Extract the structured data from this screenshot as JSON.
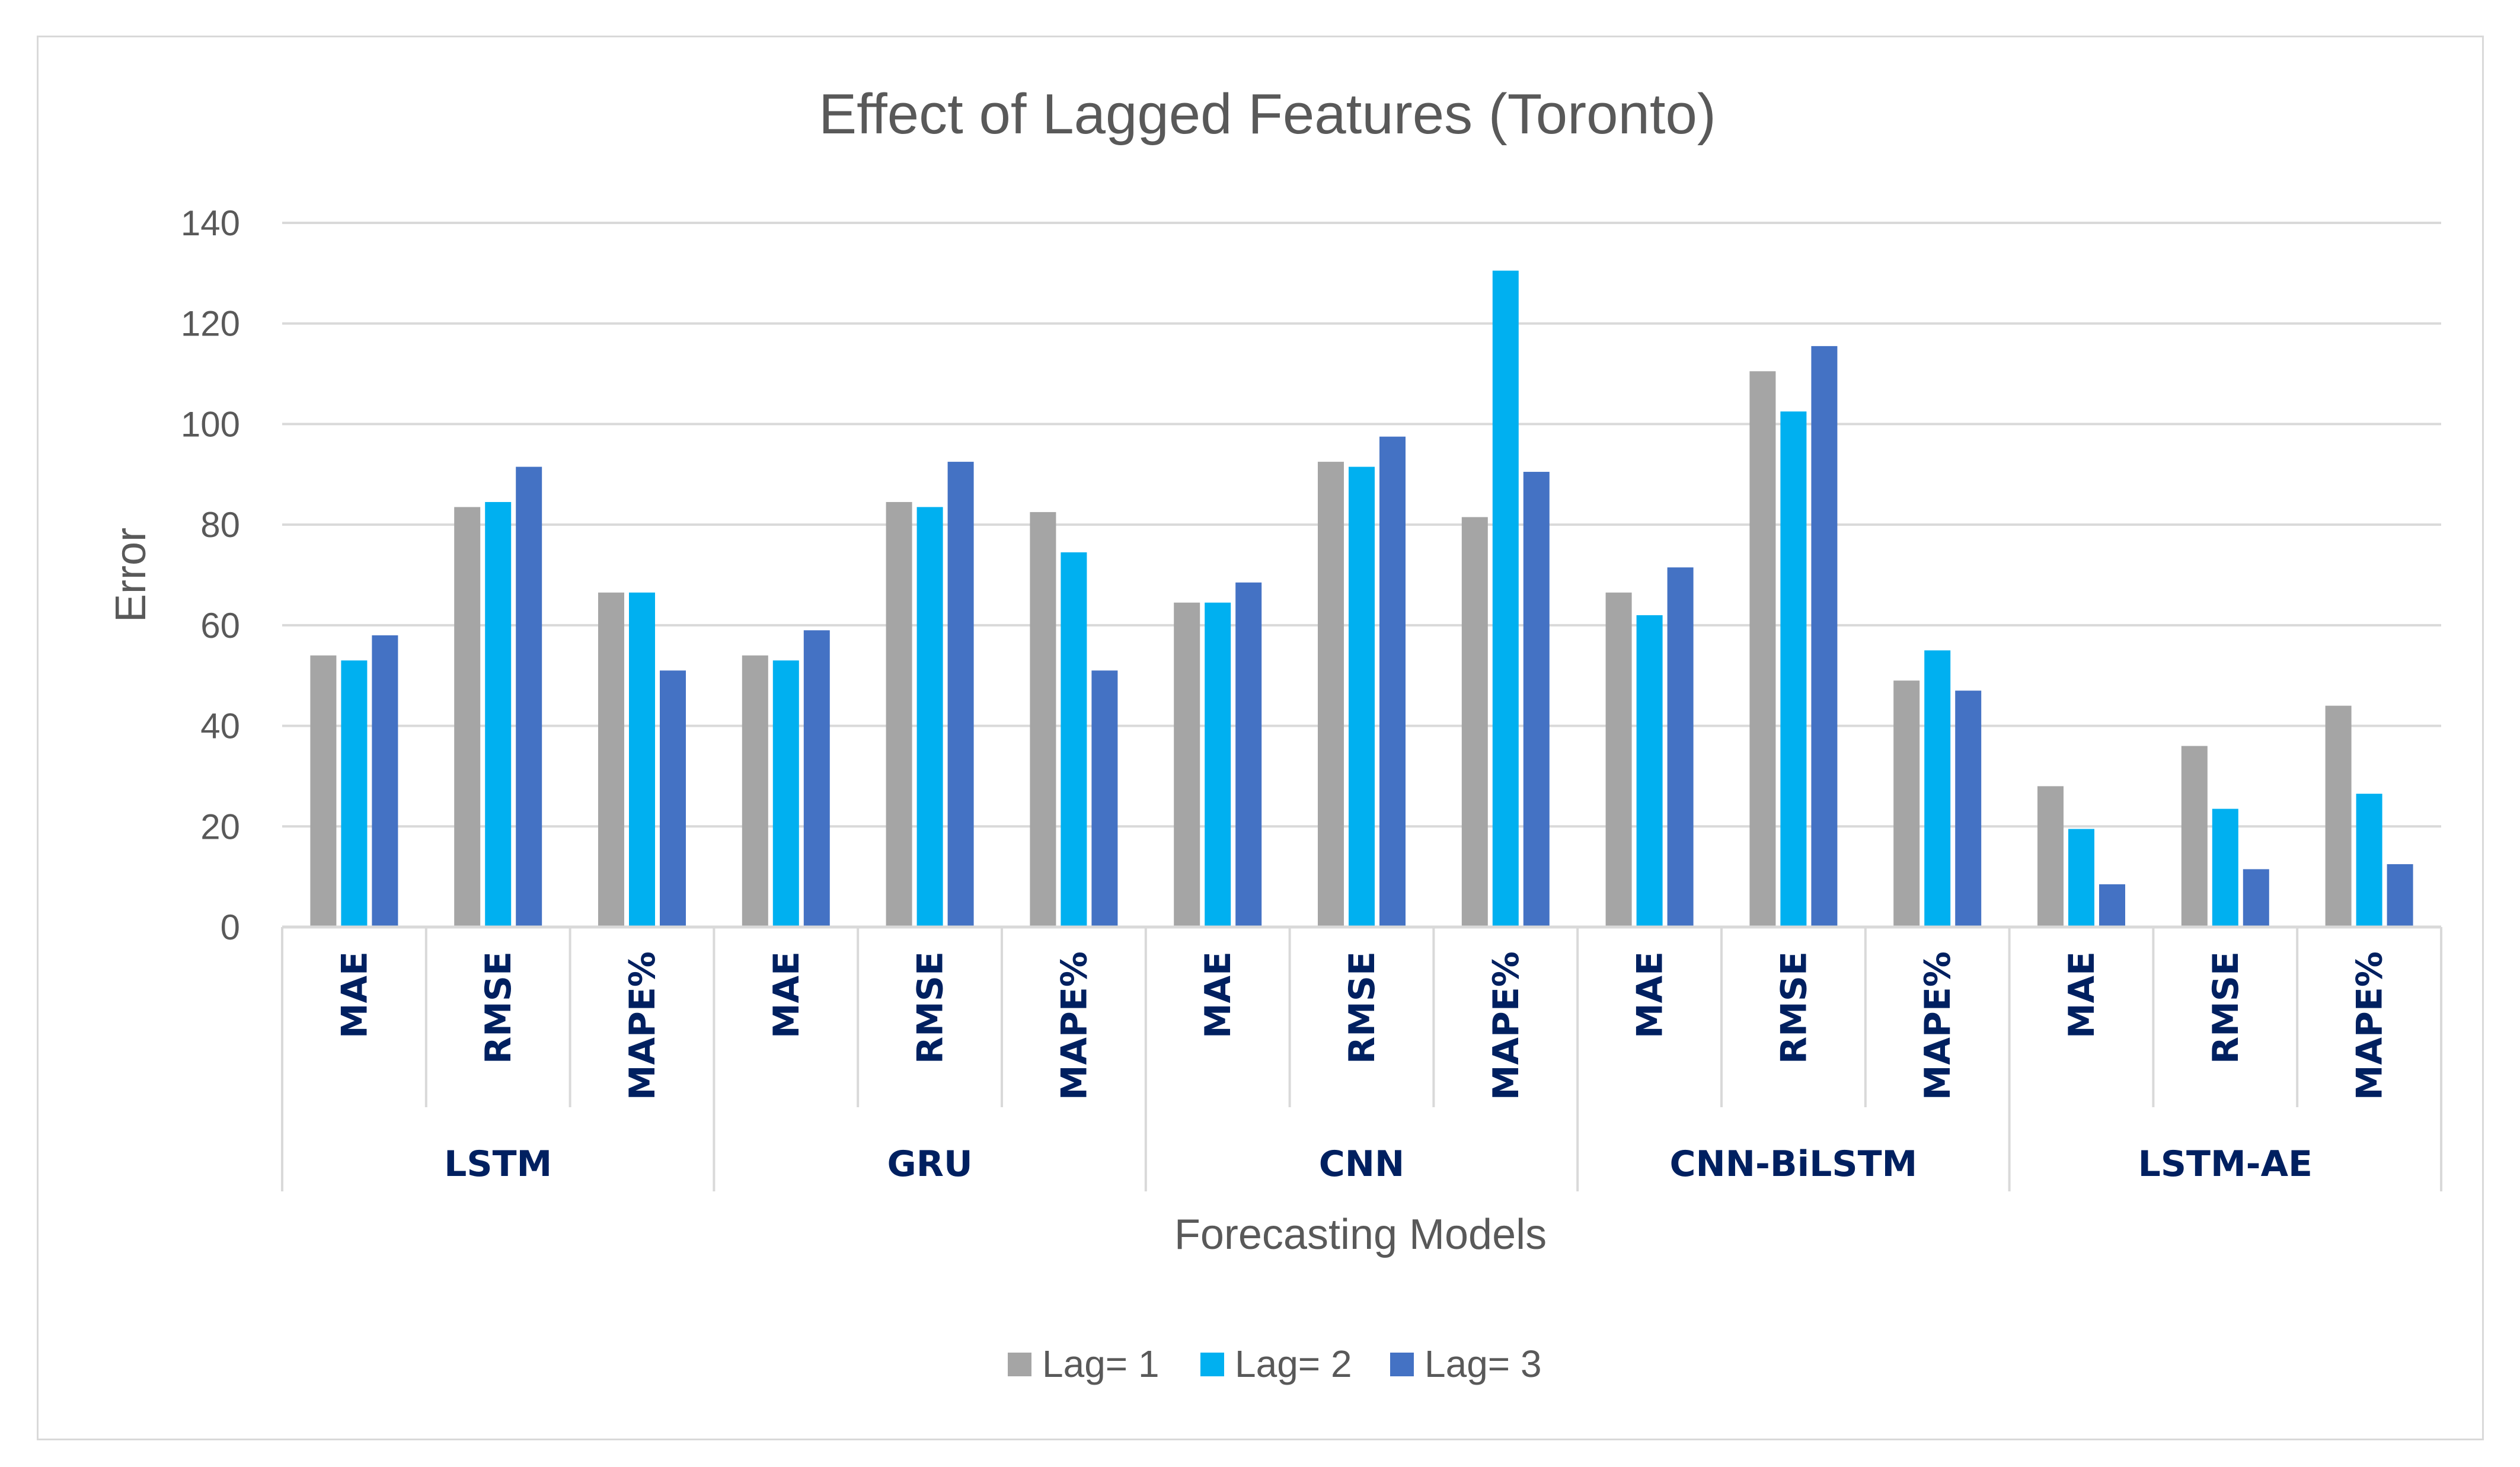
{
  "chart_data": {
    "type": "bar",
    "title": "Effect of Lagged Features (Toronto)",
    "xlabel": "Forecasting Models",
    "ylabel": "Error",
    "ylim": [
      0,
      140
    ],
    "yticks": [
      0,
      20,
      40,
      60,
      80,
      100,
      120,
      140
    ],
    "grid": true,
    "legend_position": "bottom",
    "groups": [
      "LSTM",
      "GRU",
      "CNN",
      "CNN-BiLSTM",
      "LSTM-AE"
    ],
    "metrics": [
      "MAE",
      "RMSE",
      "MAPE%"
    ],
    "categories": [
      "LSTM MAE",
      "LSTM RMSE",
      "LSTM MAPE%",
      "GRU MAE",
      "GRU RMSE",
      "GRU MAPE%",
      "CNN MAE",
      "CNN RMSE",
      "CNN MAPE%",
      "CNN-BiLSTM MAE",
      "CNN-BiLSTM RMSE",
      "CNN-BiLSTM MAPE%",
      "LSTM-AE MAE",
      "LSTM-AE RMSE",
      "LSTM-AE MAPE%"
    ],
    "series": [
      {
        "name": "Lag= 1",
        "color": "#a5a5a5",
        "values": [
          54,
          83.5,
          66.5,
          54,
          84.5,
          82.5,
          64.5,
          92.5,
          81.5,
          66.5,
          110.5,
          49,
          28,
          36,
          44
        ]
      },
      {
        "name": "Lag= 2",
        "color": "#00b0f0",
        "values": [
          53,
          84.5,
          66.5,
          53,
          83.5,
          74.5,
          64.5,
          91.5,
          130.5,
          62,
          102.5,
          55,
          19.5,
          23.5,
          26.5
        ]
      },
      {
        "name": "Lag= 3",
        "color": "#4472c4",
        "values": [
          58,
          91.5,
          51,
          59,
          92.5,
          51,
          68.5,
          97.5,
          90.5,
          71.5,
          115.5,
          47,
          8.5,
          11.5,
          12.5
        ]
      }
    ]
  }
}
